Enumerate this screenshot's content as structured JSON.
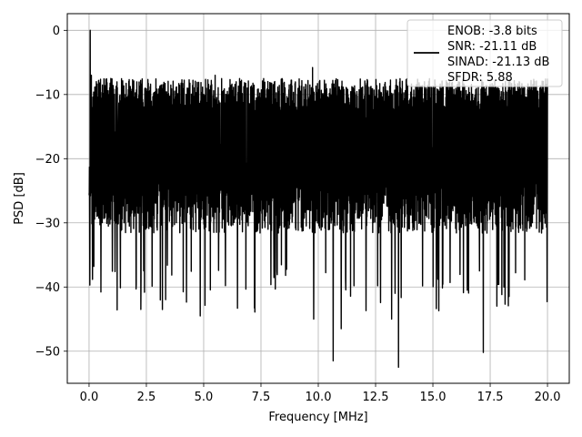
{
  "chart_data": {
    "type": "line",
    "title": "",
    "xlabel": "Frequency [MHz]",
    "ylabel": "PSD [dB]",
    "xlim": [
      -0.95,
      20.95
    ],
    "ylim": [
      -55,
      2.6
    ],
    "xticks": [
      0.0,
      2.5,
      5.0,
      7.5,
      10.0,
      12.5,
      15.0,
      17.5,
      20.0
    ],
    "xtick_labels": [
      "0.0",
      "2.5",
      "5.0",
      "7.5",
      "10.0",
      "12.5",
      "15.0",
      "17.5",
      "20.0"
    ],
    "yticks": [
      0,
      -10,
      -20,
      -30,
      -40,
      -50
    ],
    "ytick_labels": [
      "0",
      "−10",
      "−20",
      "−30",
      "−40",
      "−50"
    ],
    "grid": true,
    "legend": {
      "position": "top-right",
      "entries": [
        "ENOB: -3.8 bits",
        "SNR: -21.11 dB",
        "SINAD: -21.13 dB",
        "SFDR: 5.88"
      ]
    },
    "series": [
      {
        "color": "#000000",
        "x_range": [
          0,
          20
        ],
        "baseline_db": -20,
        "upper_envelope_db": -9,
        "lower_envelope_db": -30,
        "peaks": [
          {
            "x": 0.05,
            "y": 0
          },
          {
            "x": 0.1,
            "y": -7
          },
          {
            "x": 9.75,
            "y": -5.8
          },
          {
            "x": 5.5,
            "y": -7
          }
        ],
        "dips": [
          {
            "x": 4.85,
            "y": -44.5
          },
          {
            "x": 3.2,
            "y": -43.5
          },
          {
            "x": 9.8,
            "y": -45
          },
          {
            "x": 10.65,
            "y": -51.5
          },
          {
            "x": 11.0,
            "y": -46.5
          },
          {
            "x": 13.2,
            "y": -45
          },
          {
            "x": 13.5,
            "y": -52.5
          },
          {
            "x": 17.2,
            "y": -50.2
          },
          {
            "x": 16.5,
            "y": -40.5
          },
          {
            "x": 18.1,
            "y": -40
          }
        ]
      }
    ]
  }
}
